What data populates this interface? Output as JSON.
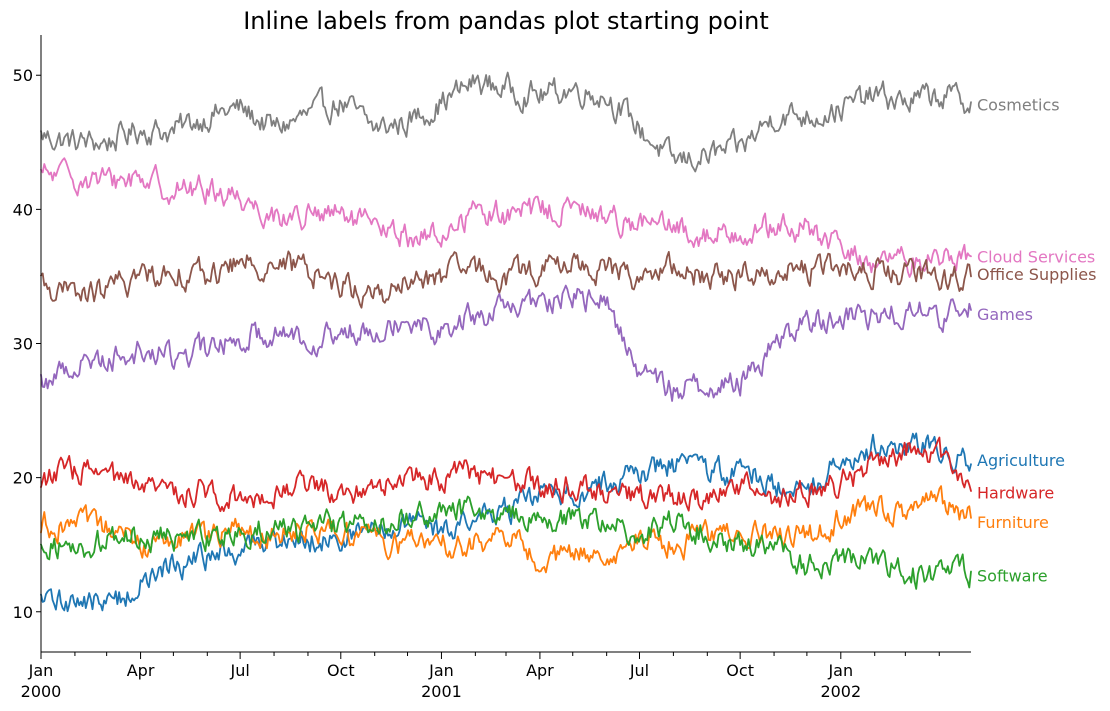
{
  "chart_data": {
    "type": "line",
    "title": "Inline labels from pandas plot starting point",
    "xlabel": "",
    "ylabel": "",
    "x_range": [
      "2000-01-01",
      "2002-04-30"
    ],
    "ylim": [
      7,
      53
    ],
    "y_ticks": [
      10,
      20,
      30,
      40,
      50
    ],
    "x_ticks": [
      {
        "date": "2000-01-01",
        "label": "Jan",
        "sublabel": "2000"
      },
      {
        "date": "2000-04-01",
        "label": "Apr",
        "sublabel": ""
      },
      {
        "date": "2000-07-01",
        "label": "Jul",
        "sublabel": ""
      },
      {
        "date": "2000-10-01",
        "label": "Oct",
        "sublabel": ""
      },
      {
        "date": "2001-01-01",
        "label": "Jan",
        "sublabel": "2001"
      },
      {
        "date": "2001-04-01",
        "label": "Apr",
        "sublabel": ""
      },
      {
        "date": "2001-07-01",
        "label": "Jul",
        "sublabel": ""
      },
      {
        "date": "2001-10-01",
        "label": "Oct",
        "sublabel": ""
      },
      {
        "date": "2002-01-01",
        "label": "Jan",
        "sublabel": "2002"
      }
    ],
    "minor_tick_dates": [
      "2000-02-01",
      "2000-03-01",
      "2000-05-01",
      "2000-06-01",
      "2000-08-01",
      "2000-09-01",
      "2000-11-01",
      "2000-12-01",
      "2001-02-01",
      "2001-03-01",
      "2001-05-01",
      "2001-06-01",
      "2001-08-01",
      "2001-09-01",
      "2001-11-01",
      "2001-12-01",
      "2002-02-01",
      "2002-03-01",
      "2002-04-01"
    ],
    "grid": false,
    "legend": "inline labels at line ends",
    "series": [
      {
        "name": "Cosmetics",
        "color": "#7f7f7f",
        "label_y": 47.8,
        "x": [
          "2000-01-01",
          "2000-02-01",
          "2000-03-01",
          "2000-04-01",
          "2000-05-01",
          "2000-06-01",
          "2000-07-01",
          "2000-08-01",
          "2000-09-01",
          "2000-10-01",
          "2000-11-01",
          "2000-12-01",
          "2001-01-01",
          "2001-02-01",
          "2001-03-01",
          "2001-04-01",
          "2001-05-01",
          "2001-06-01",
          "2001-07-01",
          "2001-08-01",
          "2001-09-01",
          "2001-10-01",
          "2001-11-01",
          "2001-12-01",
          "2002-01-01",
          "2002-02-01",
          "2002-03-01",
          "2002-04-01",
          "2002-04-30"
        ],
        "values": [
          45.5,
          45.0,
          45.0,
          46.0,
          45.8,
          47.0,
          47.5,
          46.0,
          47.0,
          48.0,
          46.0,
          46.5,
          48.0,
          49.5,
          49.0,
          48.5,
          49.0,
          48.5,
          46.0,
          43.5,
          44.0,
          44.5,
          47.0,
          47.0,
          47.5,
          48.5,
          48.0,
          48.5,
          48.0
        ]
      },
      {
        "name": "Cloud Services",
        "color": "#e377c2",
        "label_y": 36.5,
        "x": [
          "2000-01-01",
          "2000-02-01",
          "2000-03-01",
          "2000-04-01",
          "2000-05-01",
          "2000-06-01",
          "2000-07-01",
          "2000-08-01",
          "2000-09-01",
          "2000-10-01",
          "2000-11-01",
          "2000-12-01",
          "2001-01-01",
          "2001-02-01",
          "2001-03-01",
          "2001-04-01",
          "2001-05-01",
          "2001-06-01",
          "2001-07-01",
          "2001-08-01",
          "2001-09-01",
          "2001-10-01",
          "2001-11-01",
          "2001-12-01",
          "2002-01-01",
          "2002-02-01",
          "2002-03-01",
          "2002-04-01",
          "2002-04-30"
        ],
        "values": [
          42.5,
          42.5,
          42.0,
          42.5,
          41.5,
          41.5,
          41.0,
          39.5,
          39.5,
          39.5,
          38.5,
          38.0,
          38.0,
          40.0,
          39.5,
          40.0,
          40.0,
          39.5,
          39.0,
          38.5,
          38.0,
          38.5,
          38.5,
          38.5,
          37.0,
          36.0,
          36.0,
          36.5,
          36.5
        ]
      },
      {
        "name": "Office Supplies",
        "color": "#8c564b",
        "label_y": 35.2,
        "x": [
          "2000-01-01",
          "2000-02-01",
          "2000-03-01",
          "2000-04-01",
          "2000-05-01",
          "2000-06-01",
          "2000-07-01",
          "2000-08-01",
          "2000-09-01",
          "2000-10-01",
          "2000-11-01",
          "2000-12-01",
          "2001-01-01",
          "2001-02-01",
          "2001-03-01",
          "2001-04-01",
          "2001-05-01",
          "2001-06-01",
          "2001-07-01",
          "2001-08-01",
          "2001-09-01",
          "2001-10-01",
          "2001-11-01",
          "2001-12-01",
          "2002-01-01",
          "2002-02-01",
          "2002-03-01",
          "2002-04-01",
          "2002-04-30"
        ],
        "values": [
          34.5,
          33.5,
          34.0,
          35.0,
          35.5,
          35.0,
          36.0,
          36.0,
          35.5,
          34.5,
          33.5,
          34.5,
          35.0,
          35.5,
          35.0,
          35.5,
          36.0,
          35.5,
          35.0,
          35.5,
          35.0,
          35.0,
          35.5,
          35.5,
          35.5,
          35.5,
          35.0,
          35.0,
          35.0
        ]
      },
      {
        "name": "Games",
        "color": "#9467bd",
        "label_y": 32.2,
        "x": [
          "2000-01-01",
          "2000-02-01",
          "2000-03-01",
          "2000-04-01",
          "2000-05-01",
          "2000-06-01",
          "2000-07-01",
          "2000-08-01",
          "2000-09-01",
          "2000-10-01",
          "2000-11-01",
          "2000-12-01",
          "2001-01-01",
          "2001-02-01",
          "2001-03-01",
          "2001-04-01",
          "2001-05-01",
          "2001-06-01",
          "2001-07-01",
          "2001-08-01",
          "2001-09-01",
          "2001-10-01",
          "2001-11-01",
          "2001-12-01",
          "2002-01-01",
          "2002-02-01",
          "2002-03-01",
          "2002-04-01",
          "2002-04-30"
        ],
        "values": [
          27.0,
          28.5,
          29.0,
          29.5,
          29.0,
          29.5,
          30.5,
          31.0,
          30.5,
          30.5,
          31.5,
          32.0,
          31.0,
          32.0,
          32.5,
          33.0,
          33.5,
          33.0,
          28.0,
          26.5,
          27.0,
          27.0,
          30.0,
          31.5,
          32.0,
          32.0,
          32.5,
          32.0,
          32.5
        ]
      },
      {
        "name": "Agriculture",
        "color": "#1f77b4",
        "label_y": 21.3,
        "x": [
          "2000-01-01",
          "2000-02-01",
          "2000-03-01",
          "2000-04-01",
          "2000-05-01",
          "2000-06-01",
          "2000-07-01",
          "2000-08-01",
          "2000-09-01",
          "2000-10-01",
          "2000-11-01",
          "2000-12-01",
          "2001-01-01",
          "2001-02-01",
          "2001-03-01",
          "2001-04-01",
          "2001-05-01",
          "2001-06-01",
          "2001-07-01",
          "2001-08-01",
          "2001-09-01",
          "2001-10-01",
          "2001-11-01",
          "2001-12-01",
          "2002-01-01",
          "2002-02-01",
          "2002-03-01",
          "2002-04-01",
          "2002-04-30"
        ],
        "values": [
          10.5,
          11.0,
          10.5,
          12.0,
          13.5,
          14.0,
          14.5,
          15.5,
          15.5,
          15.5,
          16.0,
          16.5,
          16.0,
          17.0,
          17.5,
          18.5,
          19.0,
          19.5,
          20.5,
          21.0,
          20.5,
          20.5,
          19.5,
          19.0,
          21.5,
          22.5,
          22.0,
          22.5,
          21.0
        ]
      },
      {
        "name": "Hardware",
        "color": "#d62728",
        "label_y": 18.9,
        "x": [
          "2000-01-01",
          "2000-02-01",
          "2000-03-01",
          "2000-04-01",
          "2000-05-01",
          "2000-06-01",
          "2000-07-01",
          "2000-08-01",
          "2000-09-01",
          "2000-10-01",
          "2000-11-01",
          "2000-12-01",
          "2001-01-01",
          "2001-02-01",
          "2001-03-01",
          "2001-04-01",
          "2001-05-01",
          "2001-06-01",
          "2001-07-01",
          "2001-08-01",
          "2001-09-01",
          "2001-10-01",
          "2001-11-01",
          "2001-12-01",
          "2002-01-01",
          "2002-02-01",
          "2002-03-01",
          "2002-04-01",
          "2002-04-30"
        ],
        "values": [
          20.0,
          20.5,
          20.0,
          19.0,
          19.0,
          19.0,
          18.5,
          19.0,
          19.5,
          19.0,
          19.5,
          20.0,
          20.0,
          20.5,
          19.5,
          19.5,
          19.5,
          19.0,
          18.5,
          18.5,
          18.5,
          19.5,
          18.5,
          19.0,
          19.5,
          21.0,
          22.0,
          21.5,
          19.0
        ]
      },
      {
        "name": "Furniture",
        "color": "#ff7f0e",
        "label_y": 16.7,
        "x": [
          "2000-01-01",
          "2000-02-01",
          "2000-03-01",
          "2000-04-01",
          "2000-05-01",
          "2000-06-01",
          "2000-07-01",
          "2000-08-01",
          "2000-09-01",
          "2000-10-01",
          "2000-11-01",
          "2000-12-01",
          "2001-01-01",
          "2001-02-01",
          "2001-03-01",
          "2001-04-01",
          "2001-05-01",
          "2001-06-01",
          "2001-07-01",
          "2001-08-01",
          "2001-09-01",
          "2001-10-01",
          "2001-11-01",
          "2001-12-01",
          "2002-01-01",
          "2002-02-01",
          "2002-03-01",
          "2002-04-01",
          "2002-04-30"
        ],
        "values": [
          16.5,
          16.5,
          16.0,
          15.0,
          15.5,
          15.5,
          16.0,
          16.0,
          16.5,
          16.0,
          15.5,
          15.0,
          15.0,
          15.0,
          15.5,
          14.0,
          14.0,
          14.5,
          15.5,
          15.0,
          15.5,
          16.0,
          15.5,
          15.5,
          17.0,
          17.5,
          17.5,
          18.0,
          17.0
        ]
      },
      {
        "name": "Software",
        "color": "#2ca02c",
        "label_y": 12.7,
        "x": [
          "2000-01-01",
          "2000-02-01",
          "2000-03-01",
          "2000-04-01",
          "2000-05-01",
          "2000-06-01",
          "2000-07-01",
          "2000-08-01",
          "2000-09-01",
          "2000-10-01",
          "2000-11-01",
          "2000-12-01",
          "2001-01-01",
          "2001-02-01",
          "2001-03-01",
          "2001-04-01",
          "2001-05-01",
          "2001-06-01",
          "2001-07-01",
          "2001-08-01",
          "2001-09-01",
          "2001-10-01",
          "2001-11-01",
          "2001-12-01",
          "2002-01-01",
          "2002-02-01",
          "2002-03-01",
          "2002-04-01",
          "2002-04-30"
        ],
        "values": [
          15.5,
          14.5,
          15.5,
          15.5,
          15.5,
          15.5,
          16.0,
          16.5,
          16.0,
          16.5,
          16.5,
          17.0,
          17.5,
          17.5,
          17.0,
          17.0,
          17.0,
          16.5,
          16.0,
          16.5,
          16.0,
          15.0,
          14.5,
          13.5,
          14.0,
          13.5,
          13.0,
          12.5,
          13.0
        ]
      }
    ]
  }
}
